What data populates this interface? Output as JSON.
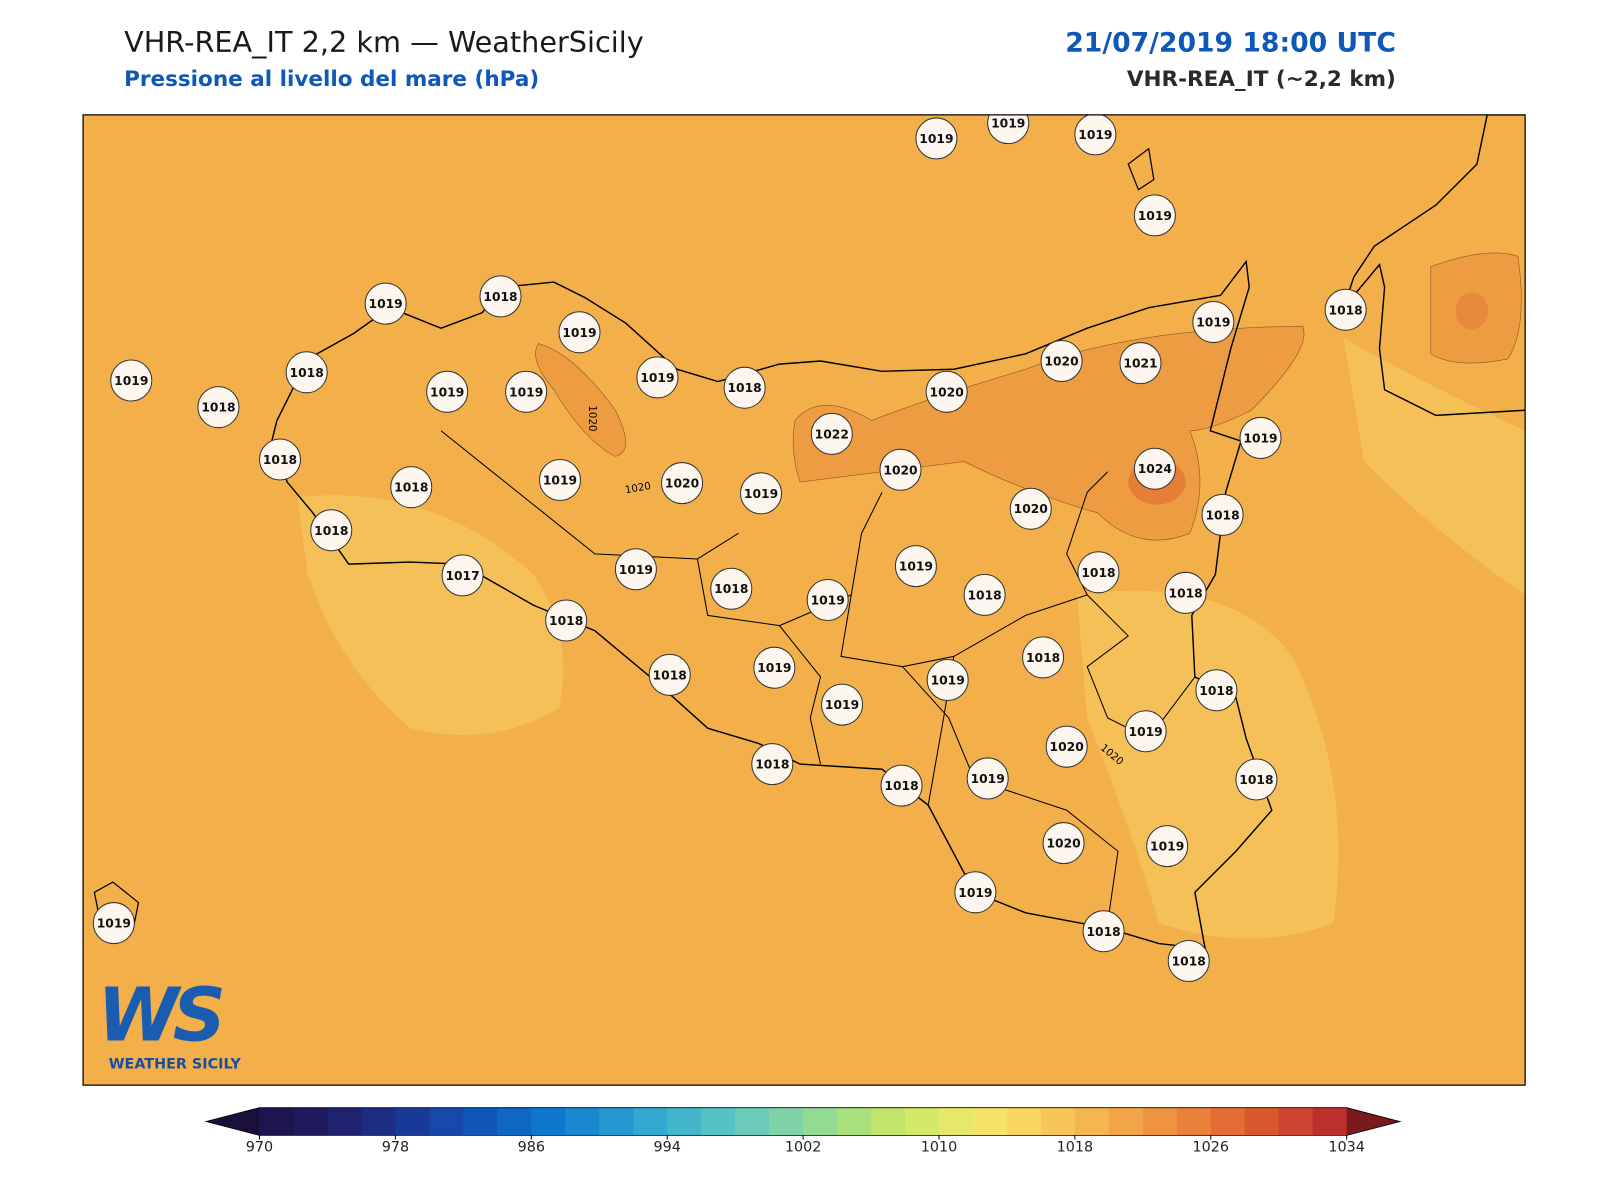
{
  "header": {
    "title": "VHR-REA_IT 2,2 km — WeatherSicily",
    "subtitle": "Pressione al livello del mare (hPa)",
    "datetime": "21/07/2019 18:00 UTC",
    "model": "VHR-REA_IT (~2,2 km)"
  },
  "stations": [
    1019,
    1019,
    1019,
    1019,
    1019,
    1018,
    1019,
    1019,
    1018,
    1018,
    1019,
    1019,
    1019,
    1018,
    1019,
    1018,
    1020,
    1021,
    1020,
    1022,
    1019,
    1018,
    1018,
    1019,
    1020,
    1019,
    1020,
    1024,
    1020,
    1018,
    1018,
    1017,
    1019,
    1018,
    1019,
    1019,
    1018,
    1018,
    1018,
    1018,
    1018,
    1019,
    1019,
    1019,
    1018,
    1018,
    1020,
    1019,
    1018,
    1018,
    1019,
    1018,
    1020,
    1019,
    1019,
    1018,
    1018,
    1019
  ],
  "contour_labels": [
    "1020",
    "1020",
    "1020"
  ],
  "colorbar": {
    "ticks": [
      970,
      978,
      986,
      994,
      1002,
      1010,
      1018,
      1026,
      1034
    ],
    "colors": [
      "#1e1450",
      "#1f1a5e",
      "#1f226e",
      "#1c2d82",
      "#183a96",
      "#1548a8",
      "#1157b8",
      "#0f67c4",
      "#0f77cc",
      "#1a88d0",
      "#2598d0",
      "#33a8d0",
      "#44b6cc",
      "#57c2c4",
      "#6bcbb8",
      "#80d3a6",
      "#95da92",
      "#abe07e",
      "#c1e46c",
      "#d5e86a",
      "#e6e86a",
      "#f5e468",
      "#f9d65e",
      "#f8c658",
      "#f5b650",
      "#f2a548",
      "#ee9440",
      "#ea813a",
      "#e36d34",
      "#d9582e",
      "#cd4430",
      "#bd2f2c"
    ],
    "under": "#1a0f3c",
    "over": "#7a1a1c"
  },
  "logo": {
    "brand": "WS",
    "text": "WEATHER SICILY"
  }
}
